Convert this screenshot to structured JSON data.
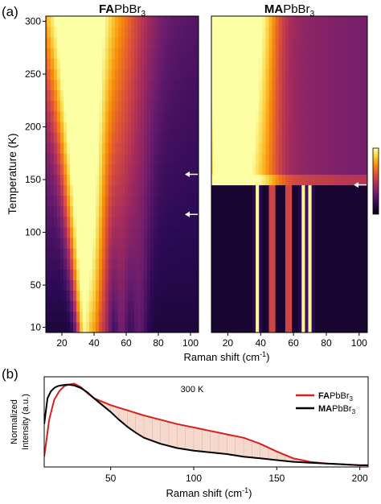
{
  "figure": {
    "panel_a_label": "(a)",
    "panel_b_label": "(b)"
  },
  "colors": {
    "colormap": [
      "#000004",
      "#2b0a55",
      "#6a1c6e",
      "#a72c5c",
      "#dd513a",
      "#f98e09",
      "#fbd242",
      "#fcffa4"
    ],
    "series_fa": "#d62020",
    "series_ma": "#000000",
    "fill_between": "#f4d0c0",
    "arrow": "#ffffff"
  },
  "chart_data": [
    {
      "type": "heatmap",
      "title_bold": "FA",
      "title_rest": "PbBr",
      "title_sub": "3",
      "xlabel_main": "Raman shift (cm",
      "xlabel_sup": "-1",
      "xlabel_end": ")",
      "ylabel": "Temperature (K)",
      "xlim": [
        10,
        105
      ],
      "ylim": [
        5,
        305
      ],
      "xticks": [
        20,
        40,
        60,
        80,
        100
      ],
      "yticks": [
        10,
        50,
        100,
        150,
        200,
        250,
        300
      ],
      "colorscale": "inferno",
      "arrows_at_temperature": [
        155,
        117
      ],
      "peaks_cm1": [
        {
          "low_T": 34,
          "high_T": 25,
          "width": 5,
          "amp": 1.0
        },
        {
          "low_T": 41,
          "high_T": 36,
          "width": 4,
          "amp": 0.55
        },
        {
          "low_T": 47,
          "high_T": 44,
          "width": 4,
          "amp": 0.35
        },
        {
          "low_T": 57,
          "high_T": 55,
          "width": 4,
          "amp": 0.25
        },
        {
          "low_T": 68,
          "high_T": 66,
          "width": 5,
          "amp": 0.2
        }
      ]
    },
    {
      "type": "heatmap",
      "title_bold": "MA",
      "title_rest": "PbBr",
      "title_sub": "3",
      "xlabel_main": "Raman shift (cm",
      "xlabel_sup": "-1",
      "xlabel_end": ")",
      "xlim": [
        10,
        105
      ],
      "ylim": [
        5,
        305
      ],
      "xticks": [
        20,
        40,
        60,
        80,
        100
      ],
      "yticks": [
        10,
        50,
        100,
        150,
        200,
        250,
        300
      ],
      "colorscale": "inferno",
      "phase_transition_temperature": 145,
      "arrows_at_temperature": [
        145
      ],
      "low_T_peaks_cm1": [
        38,
        47,
        57,
        66,
        70
      ],
      "colorbar": true
    },
    {
      "type": "line",
      "xlabel_main": "Raman shift (cm",
      "xlabel_sup": "-1",
      "xlabel_end": ")",
      "ylabel_line1": "Normalized",
      "ylabel_line2": "Intensity (a.u.)",
      "annotation": "300 K",
      "xlim": [
        10,
        205
      ],
      "ylim": [
        0,
        1.05
      ],
      "xticks": [
        50,
        100,
        150,
        200
      ],
      "legend_position": "top-right",
      "series": [
        {
          "name_bold": "FA",
          "name_rest": "PbBr",
          "name_sub": "3",
          "color": "#d62020",
          "x": [
            10,
            13,
            16,
            19,
            22,
            25,
            28,
            32,
            36,
            40,
            45,
            50,
            55,
            60,
            65,
            70,
            80,
            90,
            100,
            110,
            120,
            130,
            140,
            150,
            160,
            170,
            180,
            190,
            200,
            205
          ],
          "y": [
            0.12,
            0.55,
            0.78,
            0.88,
            0.94,
            0.96,
            0.97,
            0.93,
            0.86,
            0.8,
            0.76,
            0.72,
            0.69,
            0.66,
            0.63,
            0.6,
            0.55,
            0.5,
            0.46,
            0.42,
            0.38,
            0.34,
            0.27,
            0.18,
            0.1,
            0.06,
            0.04,
            0.03,
            0.02,
            0.02
          ]
        },
        {
          "name_bold": "MA",
          "name_rest": "PbBr",
          "name_sub": "3",
          "color": "#000000",
          "x": [
            10,
            12,
            14,
            16,
            18,
            20,
            24,
            28,
            32,
            36,
            40,
            45,
            50,
            55,
            60,
            65,
            70,
            80,
            90,
            100,
            110,
            120,
            130,
            140,
            150,
            160,
            170,
            180,
            190,
            200,
            205
          ],
          "y": [
            0.5,
            0.8,
            0.88,
            0.92,
            0.94,
            0.95,
            0.96,
            0.95,
            0.92,
            0.87,
            0.8,
            0.72,
            0.64,
            0.55,
            0.47,
            0.4,
            0.34,
            0.27,
            0.22,
            0.19,
            0.17,
            0.15,
            0.12,
            0.1,
            0.08,
            0.06,
            0.05,
            0.04,
            0.03,
            0.02,
            0.02
          ]
        }
      ]
    }
  ]
}
